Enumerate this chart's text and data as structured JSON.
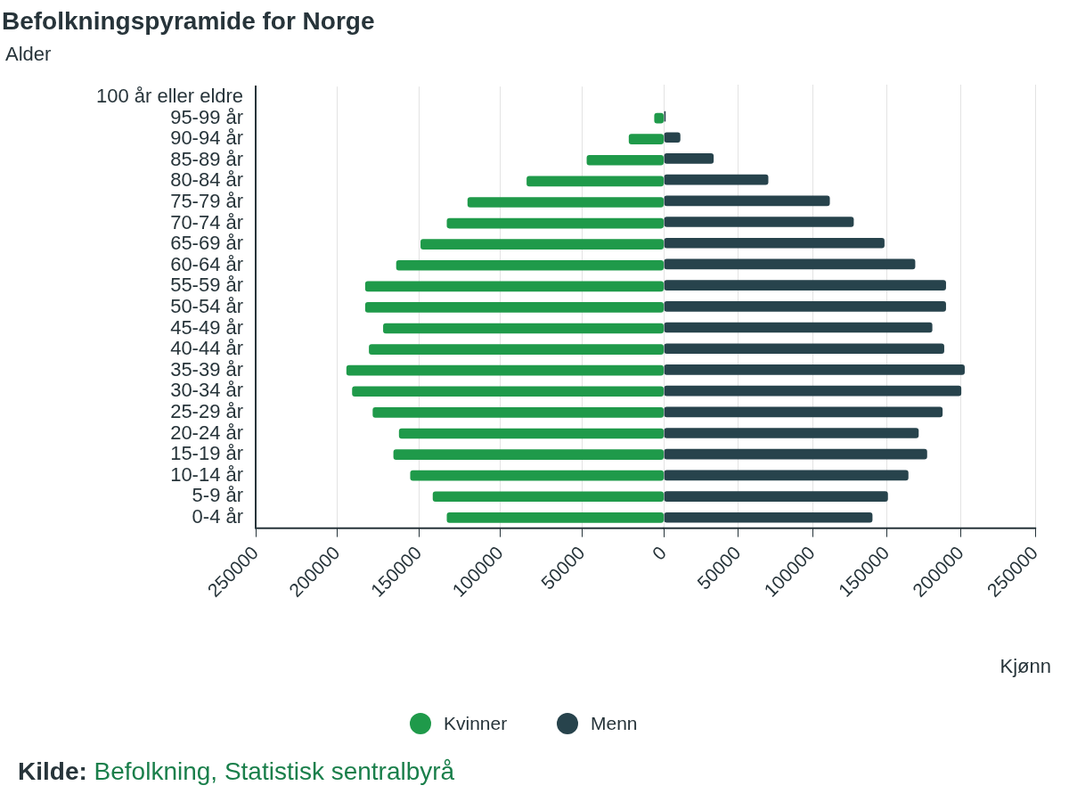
{
  "chart_data": [
    {
      "type": "bar",
      "orientation": "horizontal",
      "title": "Befolkningspyramide for Norge",
      "ylabel": "Alder",
      "categories": [
        "100 år eller eldre",
        "95-99 år",
        "90-94 år",
        "85-89 år",
        "80-84 år",
        "75-79 år",
        "70-74 år",
        "65-69 år",
        "60-64 år",
        "55-59 år",
        "50-54 år",
        "45-49 år",
        "40-44 år",
        "35-39 år",
        "30-34 år",
        "25-29 år",
        "20-24 år",
        "15-19 år",
        "10-14 år",
        "5-9 år",
        "0-4 år"
      ],
      "series": [
        {
          "name": "Kvinner",
          "color": "#1f9a4a",
          "values": [
            null,
            5700,
            21300,
            47100,
            83900,
            120100,
            132800,
            148900,
            163800,
            182800,
            182800,
            171800,
            180500,
            194300,
            190800,
            178200,
            162100,
            165500,
            155200,
            141400,
            132800
          ]
        }
      ],
      "xlim": [
        250000,
        0
      ],
      "xticks": [
        250000,
        200000,
        150000,
        100000,
        50000,
        {
          "value": 0,
          "label": null
        }
      ],
      "grid": "x",
      "legend": "bottom",
      "annotations": [
        "Kilde: Befolkning, Statistisk sentralbyrå"
      ]
    },
    {
      "type": "bar",
      "orientation": "horizontal",
      "xlabel": "Kjønn",
      "categories": [
        null,
        null,
        null,
        null,
        null,
        null,
        null,
        null,
        null,
        null,
        null,
        null,
        null,
        null,
        null,
        null,
        null,
        null,
        null,
        null,
        null
      ],
      "series": [
        {
          "name": "Menn",
          "color": "#27434c",
          "values": [
            null,
            1000,
            10900,
            33300,
            70100,
            111500,
            127600,
            148300,
            169000,
            189700,
            189700,
            180500,
            188500,
            202300,
            200000,
            187400,
            171300,
            177000,
            164400,
            150600,
            140200
          ]
        }
      ],
      "xlim": [
        0,
        250000
      ],
      "xticks": [
        0,
        50000,
        100000,
        150000,
        200000,
        250000
      ],
      "grid": "x",
      "legend": "bottom",
      "tick_labels": "x"
    }
  ]
}
